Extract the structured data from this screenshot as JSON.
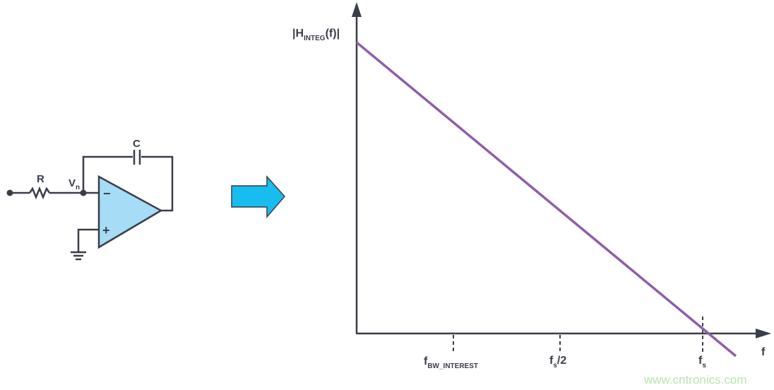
{
  "circuit": {
    "resistor_label": "R",
    "capacitor_label": "C",
    "node_label": "V",
    "node_label_sub": "n",
    "minus_sign": "−",
    "plus_sign": "+"
  },
  "arrow_icon": "right-arrow-icon",
  "plot": {
    "y_label_main": "|H",
    "y_label_sub": "INTEG",
    "y_label_end": "(f)|",
    "x_label": "f",
    "ticks": [
      {
        "main": "f",
        "sub": "BW_INTEREST",
        "end": ""
      },
      {
        "main": "f",
        "sub": "s",
        "end": "/2"
      },
      {
        "main": "f",
        "sub": "s",
        "end": ""
      }
    ]
  },
  "watermark": "www.cntronics.com",
  "colors": {
    "line": "#3a3d4a",
    "opamp_fill": "#a6dcf5",
    "arrow_fill": "#17bdee",
    "response": "#8e5ea8"
  }
}
